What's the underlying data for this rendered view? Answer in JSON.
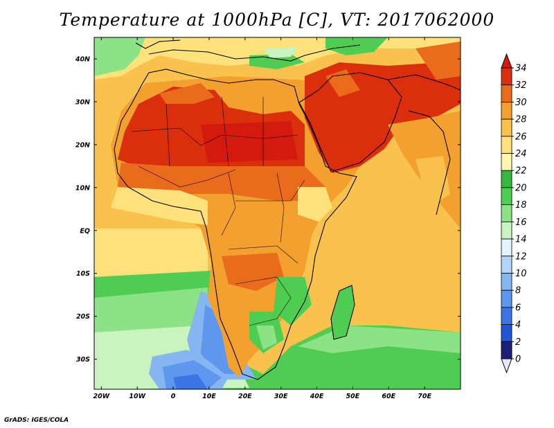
{
  "title": "Temperature at 1000hPa [C], VT: 2017062000",
  "credit": "GrADS: IGES/COLA",
  "map": {
    "lon_labels": [
      "20W",
      "10W",
      "0",
      "10E",
      "20E",
      "30E",
      "40E",
      "50E",
      "60E",
      "70E"
    ],
    "lat_labels": [
      "40N",
      "30N",
      "20N",
      "10N",
      "EQ",
      "10S",
      "20S",
      "30S"
    ],
    "lon_range": [
      -22,
      80
    ],
    "lat_range": [
      -37,
      45
    ]
  },
  "colorbar": {
    "levels": [
      "0",
      "2",
      "4",
      "6",
      "8",
      "10",
      "12",
      "14",
      "16",
      "18",
      "20",
      "22",
      "24",
      "26",
      "28",
      "30",
      "32",
      "34"
    ],
    "colors": [
      "#1b1f7a",
      "#1d3fb0",
      "#2157d4",
      "#3c76e6",
      "#5f96ee",
      "#86b6f2",
      "#b2d4f6",
      "#dff5ff",
      "#c9f3bf",
      "#8de286",
      "#4fcd52",
      "#36b83e",
      "#fff6b0",
      "#fde17a",
      "#f9c24d",
      "#f3a02f",
      "#ea6b1c",
      "#db2e0d",
      "#d41a0c"
    ],
    "below_color": "#e6e6fa"
  }
}
